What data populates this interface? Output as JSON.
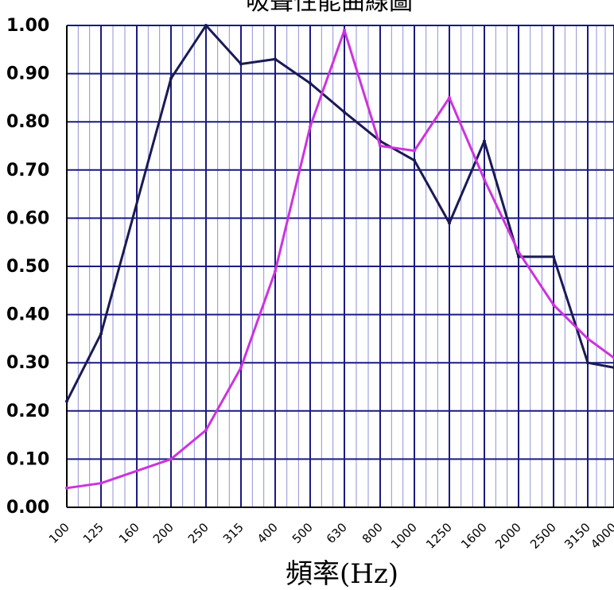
{
  "chart_data": {
    "type": "line",
    "title": "吸聲性能曲線圖",
    "xlabel": "頻率(Hz)",
    "ylabel": "",
    "categories": [
      "100",
      "125",
      "160",
      "200",
      "250",
      "315",
      "400",
      "500",
      "630",
      "800",
      "1000",
      "1250",
      "1600",
      "2000",
      "2500",
      "3150",
      "4000"
    ],
    "x_labels": [
      "100",
      "125",
      "160",
      "200",
      "250",
      "315",
      "400",
      "500",
      "630",
      "800",
      "1000",
      "1250",
      "1600",
      "2000",
      "2500",
      "3150",
      "4000"
    ],
    "ylim": [
      0,
      1
    ],
    "yticks": [
      "0.00",
      "0.10",
      "0.20",
      "0.30",
      "0.40",
      "0.50",
      "0.60",
      "0.70",
      "0.80",
      "0.90",
      "1.00"
    ],
    "grid": true,
    "legend": "none",
    "series": [
      {
        "color": "#1a1a55",
        "x": [
          100,
          125,
          200,
          250,
          315,
          400,
          500,
          630,
          800,
          1000,
          1250,
          1600,
          2000,
          2500,
          3150,
          4000
        ],
        "y": [
          0.22,
          0.36,
          0.89,
          1.0,
          0.92,
          0.93,
          0.88,
          0.82,
          0.76,
          0.72,
          0.59,
          0.76,
          0.52,
          0.52,
          0.3,
          0.29
        ]
      },
      {
        "color": "#cc33dd",
        "x": [
          100,
          125,
          200,
          250,
          315,
          400,
          500,
          630,
          800,
          1000,
          1250,
          1600,
          2000,
          2500,
          3150,
          4000
        ],
        "y": [
          0.04,
          0.05,
          0.1,
          0.16,
          0.29,
          0.49,
          0.79,
          0.99,
          0.75,
          0.74,
          0.85,
          0.68,
          0.53,
          0.42,
          0.35,
          0.31
        ]
      }
    ],
    "colors": {
      "grid": "#1a1a80",
      "axis_text": "#000000"
    }
  }
}
